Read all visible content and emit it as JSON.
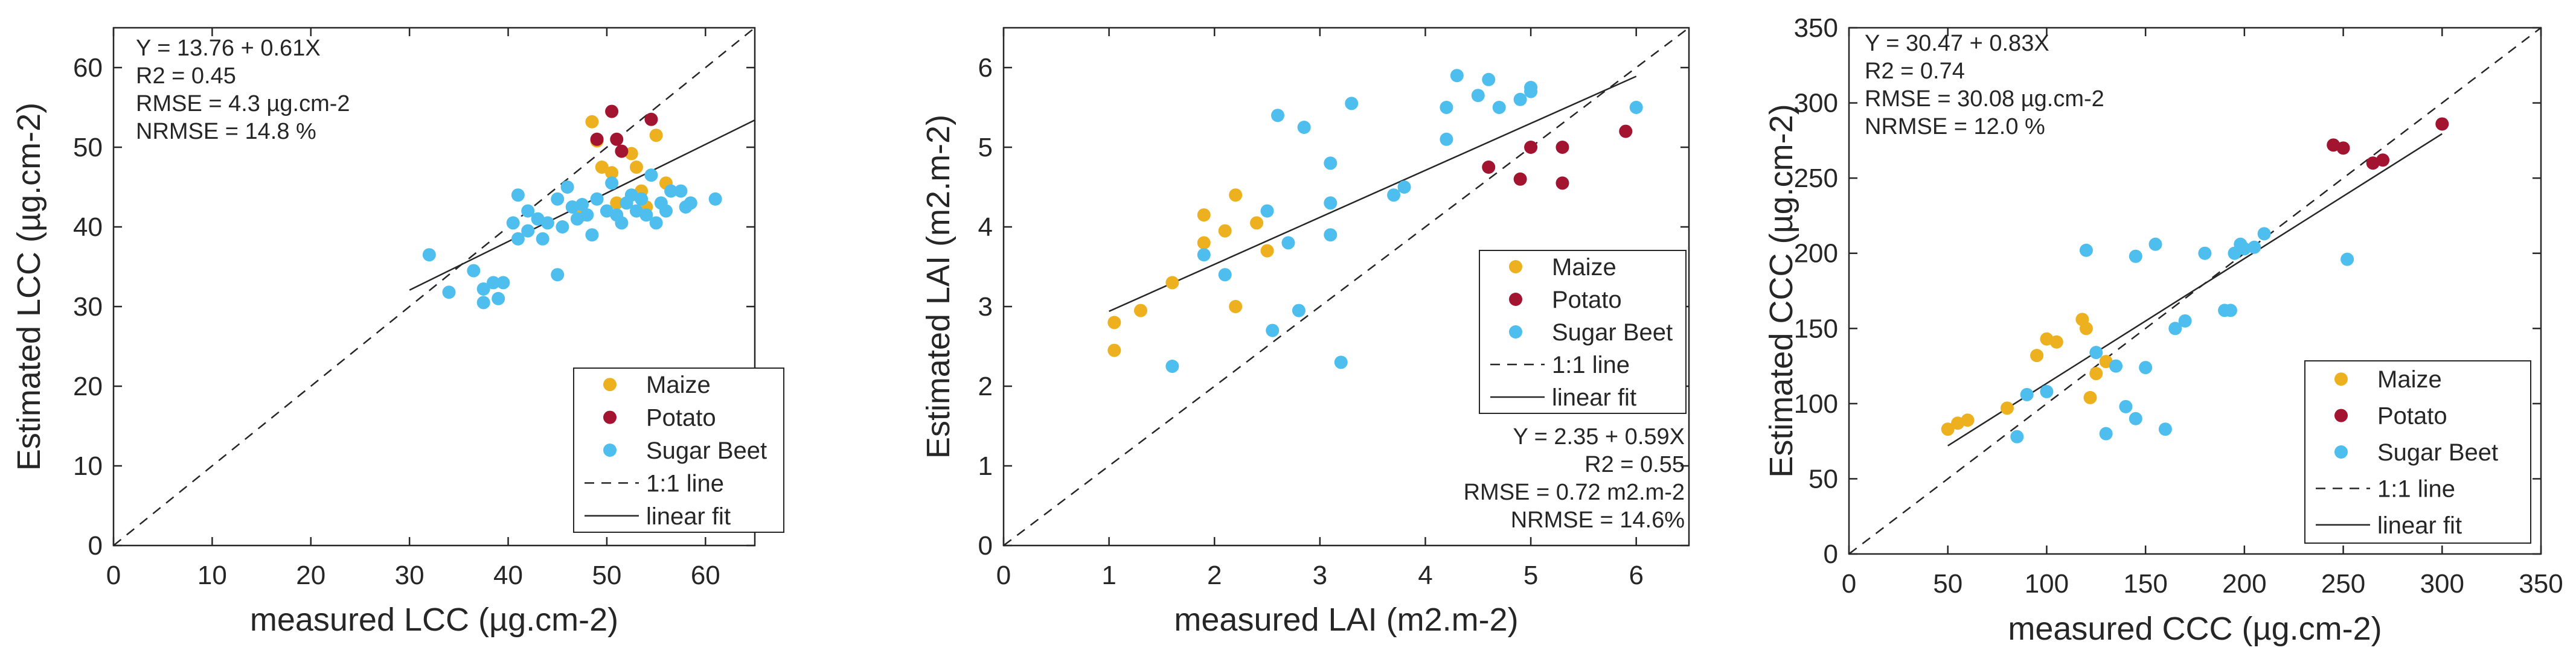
{
  "chart_data": [
    {
      "type": "scatter",
      "id": "lcc",
      "xlabel": "measured LCC (µg.cm-2)",
      "ylabel": "Estimated LCC (µg.cm-2)",
      "xlim": [
        0,
        65
      ],
      "ylim": [
        0,
        65
      ],
      "xticks": [
        0,
        10,
        20,
        30,
        40,
        50,
        60
      ],
      "yticks": [
        0,
        10,
        20,
        30,
        40,
        50,
        60
      ],
      "stats": [
        "Y = 13.76 + 0.61X",
        "R2 = 0.45",
        "RMSE = 4.3 µg.cm-2",
        "NRMSE = 14.8 %"
      ],
      "stats_position": "top-left",
      "legend_position": "bottom-right",
      "fit": {
        "intercept": 13.76,
        "slope": 0.61,
        "x_range": [
          30,
          65
        ]
      },
      "series": [
        {
          "name": "Maize",
          "color": "#EDB120",
          "points": [
            [
              48.5,
              53.2
            ],
            [
              49.0,
              50.8
            ],
            [
              49.5,
              47.5
            ],
            [
              50.5,
              46.8
            ],
            [
              52.5,
              49.2
            ],
            [
              53.0,
              47.5
            ],
            [
              53.5,
              44.5
            ],
            [
              54.0,
              42.5
            ],
            [
              55.0,
              51.5
            ],
            [
              56.0,
              45.5
            ],
            [
              47.5,
              41.5
            ],
            [
              51.0,
              43.0
            ]
          ]
        },
        {
          "name": "Potato",
          "color": "#A2142F",
          "points": [
            [
              49.0,
              51.0
            ],
            [
              50.5,
              54.5
            ],
            [
              51.0,
              51.0
            ],
            [
              51.5,
              49.5
            ],
            [
              54.5,
              53.5
            ]
          ]
        },
        {
          "name": "Sugar Beet",
          "color": "#4DBEEE",
          "points": [
            [
              32.0,
              36.5
            ],
            [
              34.0,
              31.8
            ],
            [
              36.5,
              34.5
            ],
            [
              37.5,
              30.5
            ],
            [
              37.5,
              32.2
            ],
            [
              38.5,
              33.0
            ],
            [
              39.0,
              31.0
            ],
            [
              39.5,
              33.0
            ],
            [
              40.5,
              40.5
            ],
            [
              41.0,
              38.5
            ],
            [
              41.0,
              44.0
            ],
            [
              42.0,
              42.0
            ],
            [
              42.0,
              39.5
            ],
            [
              43.0,
              41.0
            ],
            [
              43.5,
              38.5
            ],
            [
              44.0,
              40.5
            ],
            [
              45.0,
              43.5
            ],
            [
              45.0,
              34.0
            ],
            [
              45.5,
              40.0
            ],
            [
              46.0,
              45.0
            ],
            [
              46.5,
              42.5
            ],
            [
              47.0,
              41.0
            ],
            [
              47.5,
              42.8
            ],
            [
              48.0,
              41.5
            ],
            [
              48.5,
              39.0
            ],
            [
              49.0,
              43.5
            ],
            [
              50.0,
              42.0
            ],
            [
              50.5,
              45.5
            ],
            [
              51.0,
              41.5
            ],
            [
              51.5,
              40.5
            ],
            [
              52.0,
              43.0
            ],
            [
              52.5,
              44.0
            ],
            [
              53.0,
              42.0
            ],
            [
              53.5,
              43.5
            ],
            [
              54.0,
              41.5
            ],
            [
              54.5,
              46.5
            ],
            [
              55.0,
              40.5
            ],
            [
              55.5,
              43.0
            ],
            [
              56.0,
              42.0
            ],
            [
              56.5,
              44.5
            ],
            [
              57.5,
              44.5
            ],
            [
              58.0,
              42.5
            ],
            [
              58.5,
              43.0
            ],
            [
              61.0,
              43.5
            ]
          ]
        }
      ]
    },
    {
      "type": "scatter",
      "id": "lai",
      "xlabel": "measured LAI (m2.m-2)",
      "ylabel": "Estimated LAI (m2.m-2)",
      "xlim": [
        0,
        6.5
      ],
      "ylim": [
        0,
        6.5
      ],
      "xticks": [
        0,
        1,
        2,
        3,
        4,
        5,
        6
      ],
      "yticks": [
        0,
        1,
        2,
        3,
        4,
        5,
        6
      ],
      "stats": [
        "Y = 2.35 + 0.59X",
        "R2 = 0.55",
        "RMSE = 0.72 m2.m-2",
        "NRMSE = 14.6%"
      ],
      "stats_position": "bottom-right",
      "legend_position": "middle-right",
      "fit": {
        "intercept": 2.35,
        "slope": 0.59,
        "x_range": [
          1.0,
          6.0
        ]
      },
      "series": [
        {
          "name": "Maize",
          "color": "#EDB120",
          "points": [
            [
              1.05,
              2.8
            ],
            [
              1.05,
              2.45
            ],
            [
              1.3,
              2.95
            ],
            [
              1.6,
              3.3
            ],
            [
              1.9,
              4.15
            ],
            [
              1.9,
              3.8
            ],
            [
              2.1,
              3.95
            ],
            [
              2.2,
              4.4
            ],
            [
              2.2,
              3.0
            ],
            [
              2.4,
              4.05
            ],
            [
              2.5,
              3.7
            ]
          ]
        },
        {
          "name": "Potato",
          "color": "#A2142F",
          "points": [
            [
              4.6,
              4.75
            ],
            [
              4.9,
              4.6
            ],
            [
              5.0,
              5.0
            ],
            [
              5.3,
              5.0
            ],
            [
              5.3,
              4.55
            ],
            [
              5.9,
              5.2
            ]
          ]
        },
        {
          "name": "Sugar Beet",
          "color": "#4DBEEE",
          "points": [
            [
              1.6,
              2.25
            ],
            [
              1.9,
              3.65
            ],
            [
              2.1,
              3.4
            ],
            [
              2.5,
              4.2
            ],
            [
              2.55,
              2.7
            ],
            [
              2.6,
              5.4
            ],
            [
              2.7,
              3.8
            ],
            [
              2.8,
              2.95
            ],
            [
              2.85,
              5.25
            ],
            [
              3.1,
              4.8
            ],
            [
              3.1,
              4.3
            ],
            [
              3.1,
              3.9
            ],
            [
              3.2,
              2.3
            ],
            [
              3.3,
              5.55
            ],
            [
              3.7,
              4.4
            ],
            [
              3.8,
              4.5
            ],
            [
              4.2,
              5.5
            ],
            [
              4.2,
              5.1
            ],
            [
              4.3,
              5.9
            ],
            [
              4.5,
              5.65
            ],
            [
              4.6,
              5.85
            ],
            [
              4.7,
              5.5
            ],
            [
              4.9,
              5.6
            ],
            [
              5.0,
              5.75
            ],
            [
              5.0,
              5.7
            ],
            [
              6.0,
              5.5
            ]
          ]
        }
      ]
    },
    {
      "type": "scatter",
      "id": "ccc",
      "xlabel": "measured CCC (µg.cm-2)",
      "ylabel": "Estimated CCC (µg.cm-2)",
      "xlim": [
        0,
        350
      ],
      "ylim": [
        0,
        350
      ],
      "xticks": [
        0,
        50,
        100,
        150,
        200,
        250,
        300,
        350
      ],
      "yticks": [
        0,
        50,
        100,
        150,
        200,
        250,
        300,
        350
      ],
      "stats": [
        "Y = 30.47 + 0.83X",
        "R2 = 0.74",
        "RMSE = 30.08 µg.cm-2",
        "NRMSE = 12.0 %"
      ],
      "stats_position": "top-left",
      "legend_position": "bottom-right",
      "fit": {
        "intercept": 30.47,
        "slope": 0.83,
        "x_range": [
          50,
          300
        ]
      },
      "series": [
        {
          "name": "Maize",
          "color": "#EDB120",
          "points": [
            [
              50,
              83
            ],
            [
              55,
              87
            ],
            [
              60,
              89
            ],
            [
              80,
              97
            ],
            [
              95,
              132
            ],
            [
              100,
              143
            ],
            [
              105,
              141
            ],
            [
              118,
              156
            ],
            [
              120,
              150
            ],
            [
              122,
              104
            ],
            [
              125,
              120
            ],
            [
              130,
              128
            ]
          ]
        },
        {
          "name": "Potato",
          "color": "#A2142F",
          "points": [
            [
              245,
              272
            ],
            [
              250,
              270
            ],
            [
              265,
              260
            ],
            [
              270,
              262
            ],
            [
              300,
              286
            ]
          ]
        },
        {
          "name": "Sugar Beet",
          "color": "#4DBEEE",
          "points": [
            [
              85,
              78
            ],
            [
              90,
              106
            ],
            [
              100,
              108
            ],
            [
              120,
              202
            ],
            [
              125,
              134
            ],
            [
              130,
              80
            ],
            [
              135,
              125
            ],
            [
              140,
              98
            ],
            [
              145,
              90
            ],
            [
              145,
              198
            ],
            [
              150,
              124
            ],
            [
              155,
              206
            ],
            [
              160,
              83
            ],
            [
              165,
              150
            ],
            [
              170,
              155
            ],
            [
              180,
              200
            ],
            [
              190,
              162
            ],
            [
              193,
              162
            ],
            [
              195,
              200
            ],
            [
              198,
              206
            ],
            [
              200,
              203
            ],
            [
              205,
              204
            ],
            [
              210,
              213
            ],
            [
              252,
              196
            ]
          ]
        }
      ]
    }
  ],
  "legend_labels": {
    "maize": "Maize",
    "potato": "Potato",
    "sugar_beet": "Sugar Beet",
    "one_to_one": "1:1 line",
    "linear_fit": "linear fit"
  }
}
